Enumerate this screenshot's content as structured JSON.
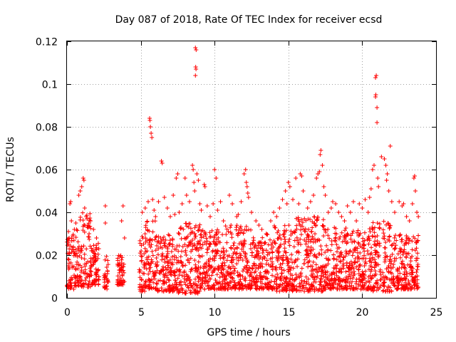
{
  "chart_data": {
    "type": "scatter",
    "title": "Day 087 of 2018, Rate Of TEC Index for receiver ecsd",
    "xlabel": "GPS time / hours",
    "ylabel": "ROTI / TECUs",
    "xlim": [
      0,
      25
    ],
    "ylim": [
      0,
      0.12
    ],
    "xticks": [
      0,
      5,
      10,
      15,
      20,
      25
    ],
    "yticks": [
      0,
      0.02,
      0.04,
      0.06,
      0.08,
      0.1,
      0.12
    ],
    "xtick_labels": [
      "0",
      "5",
      "10",
      "15",
      "20",
      "25"
    ],
    "ytick_labels": [
      "0",
      "0.02",
      "0.04",
      "0.06",
      "0.08",
      "0.1",
      "0.12"
    ],
    "grid": true,
    "marker": "+",
    "color": "#ff0000",
    "series": [
      {
        "name": "ROTI",
        "points": [
          [
            0.1,
            0.031
          ],
          [
            0.15,
            0.028
          ],
          [
            0.2,
            0.044
          ],
          [
            0.25,
            0.045
          ],
          [
            0.3,
            0.036
          ],
          [
            0.4,
            0.029
          ],
          [
            0.5,
            0.032
          ],
          [
            0.6,
            0.035
          ],
          [
            0.8,
            0.048
          ],
          [
            0.9,
            0.05
          ],
          [
            1.0,
            0.052
          ],
          [
            1.1,
            0.056
          ],
          [
            1.15,
            0.055
          ],
          [
            1.2,
            0.042
          ],
          [
            1.3,
            0.038
          ],
          [
            1.4,
            0.034
          ],
          [
            1.5,
            0.03
          ],
          [
            1.6,
            0.036
          ],
          [
            1.8,
            0.032
          ],
          [
            2.0,
            0.028
          ],
          [
            2.6,
            0.043
          ],
          [
            2.6,
            0.035
          ],
          [
            3.7,
            0.036
          ],
          [
            3.8,
            0.043
          ],
          [
            3.9,
            0.028
          ],
          [
            5.1,
            0.04
          ],
          [
            5.3,
            0.042
          ],
          [
            5.5,
            0.045
          ],
          [
            5.6,
            0.084
          ],
          [
            5.62,
            0.083
          ],
          [
            5.65,
            0.08
          ],
          [
            5.7,
            0.077
          ],
          [
            5.75,
            0.075
          ],
          [
            5.8,
            0.046
          ],
          [
            5.9,
            0.041
          ],
          [
            6.0,
            0.038
          ],
          [
            6.2,
            0.045
          ],
          [
            6.4,
            0.064
          ],
          [
            6.45,
            0.063
          ],
          [
            6.6,
            0.047
          ],
          [
            6.8,
            0.042
          ],
          [
            7.0,
            0.038
          ],
          [
            7.2,
            0.048
          ],
          [
            7.3,
            0.039
          ],
          [
            7.4,
            0.056
          ],
          [
            7.5,
            0.058
          ],
          [
            7.6,
            0.04
          ],
          [
            7.8,
            0.044
          ],
          [
            8.0,
            0.056
          ],
          [
            8.1,
            0.048
          ],
          [
            8.3,
            0.045
          ],
          [
            8.5,
            0.062
          ],
          [
            8.55,
            0.06
          ],
          [
            8.6,
            0.054
          ],
          [
            8.65,
            0.05
          ],
          [
            8.7,
            0.117
          ],
          [
            8.75,
            0.116
          ],
          [
            8.72,
            0.108
          ],
          [
            8.74,
            0.107
          ],
          [
            8.7,
            0.104
          ],
          [
            8.8,
            0.058
          ],
          [
            8.9,
            0.055
          ],
          [
            9.0,
            0.044
          ],
          [
            9.1,
            0.041
          ],
          [
            9.3,
            0.053
          ],
          [
            9.35,
            0.052
          ],
          [
            9.5,
            0.043
          ],
          [
            9.7,
            0.038
          ],
          [
            9.9,
            0.044
          ],
          [
            10.0,
            0.06
          ],
          [
            10.1,
            0.056
          ],
          [
            10.2,
            0.041
          ],
          [
            10.4,
            0.045
          ],
          [
            10.6,
            0.036
          ],
          [
            11.0,
            0.048
          ],
          [
            11.2,
            0.044
          ],
          [
            11.5,
            0.038
          ],
          [
            11.6,
            0.039
          ],
          [
            11.8,
            0.045
          ],
          [
            12.0,
            0.058
          ],
          [
            12.1,
            0.06
          ],
          [
            12.15,
            0.054
          ],
          [
            12.2,
            0.052
          ],
          [
            12.25,
            0.049
          ],
          [
            12.3,
            0.047
          ],
          [
            12.5,
            0.04
          ],
          [
            12.8,
            0.036
          ],
          [
            13.0,
            0.034
          ],
          [
            13.2,
            0.032
          ],
          [
            13.5,
            0.03
          ],
          [
            13.8,
            0.036
          ],
          [
            14.0,
            0.04
          ],
          [
            14.2,
            0.038
          ],
          [
            14.4,
            0.042
          ],
          [
            14.6,
            0.046
          ],
          [
            14.8,
            0.05
          ],
          [
            14.9,
            0.044
          ],
          [
            15.0,
            0.054
          ],
          [
            15.1,
            0.052
          ],
          [
            15.3,
            0.046
          ],
          [
            15.5,
            0.056
          ],
          [
            15.7,
            0.044
          ],
          [
            15.8,
            0.058
          ],
          [
            15.9,
            0.057
          ],
          [
            16.0,
            0.05
          ],
          [
            16.3,
            0.042
          ],
          [
            16.5,
            0.045
          ],
          [
            16.7,
            0.048
          ],
          [
            16.9,
            0.056
          ],
          [
            17.0,
            0.058
          ],
          [
            17.1,
            0.059
          ],
          [
            17.15,
            0.067
          ],
          [
            17.2,
            0.069
          ],
          [
            17.3,
            0.062
          ],
          [
            17.4,
            0.052
          ],
          [
            17.5,
            0.048
          ],
          [
            17.7,
            0.04
          ],
          [
            17.9,
            0.042
          ],
          [
            18.0,
            0.045
          ],
          [
            18.2,
            0.044
          ],
          [
            18.4,
            0.04
          ],
          [
            18.6,
            0.038
          ],
          [
            18.8,
            0.036
          ],
          [
            19.0,
            0.043
          ],
          [
            19.2,
            0.04
          ],
          [
            19.4,
            0.045
          ],
          [
            19.6,
            0.036
          ],
          [
            19.8,
            0.044
          ],
          [
            20.0,
            0.042
          ],
          [
            20.2,
            0.046
          ],
          [
            20.4,
            0.04
          ],
          [
            20.5,
            0.047
          ],
          [
            20.6,
            0.051
          ],
          [
            20.7,
            0.06
          ],
          [
            20.8,
            0.062
          ],
          [
            20.9,
            0.103
          ],
          [
            20.95,
            0.104
          ],
          [
            20.92,
            0.095
          ],
          [
            20.9,
            0.094
          ],
          [
            21.0,
            0.089
          ],
          [
            21.0,
            0.082
          ],
          [
            21.05,
            0.056
          ],
          [
            21.1,
            0.052
          ],
          [
            21.3,
            0.066
          ],
          [
            21.5,
            0.065
          ],
          [
            21.6,
            0.062
          ],
          [
            21.65,
            0.055
          ],
          [
            21.7,
            0.058
          ],
          [
            21.8,
            0.05
          ],
          [
            21.9,
            0.071
          ],
          [
            22.0,
            0.045
          ],
          [
            22.2,
            0.04
          ],
          [
            22.5,
            0.045
          ],
          [
            22.7,
            0.043
          ],
          [
            22.8,
            0.044
          ],
          [
            23.0,
            0.038
          ],
          [
            23.2,
            0.036
          ],
          [
            23.4,
            0.044
          ],
          [
            23.5,
            0.056
          ],
          [
            23.55,
            0.057
          ],
          [
            23.6,
            0.05
          ],
          [
            23.7,
            0.04
          ],
          [
            23.8,
            0.038
          ]
        ],
        "bands": [
          {
            "x": [
              0.0,
              0.6
            ],
            "y": [
              0.004,
              0.032
            ]
          },
          {
            "x": [
              0.6,
              1.6
            ],
            "y": [
              0.005,
              0.04
            ]
          },
          {
            "x": [
              1.6,
              2.2
            ],
            "y": [
              0.006,
              0.026
            ]
          },
          {
            "x": [
              2.5,
              2.8
            ],
            "y": [
              0.004,
              0.02
            ]
          },
          {
            "x": [
              3.4,
              3.9
            ],
            "y": [
              0.006,
              0.02
            ]
          },
          {
            "x": [
              4.9,
              5.3
            ],
            "y": [
              0.003,
              0.03
            ]
          },
          {
            "x": [
              5.3,
              6.0
            ],
            "y": [
              0.004,
              0.036
            ]
          },
          {
            "x": [
              6.0,
              7.5
            ],
            "y": [
              0.003,
              0.03
            ]
          },
          {
            "x": [
              7.5,
              9.0
            ],
            "y": [
              0.002,
              0.035
            ]
          },
          {
            "x": [
              9.0,
              10.5
            ],
            "y": [
              0.004,
              0.032
            ]
          },
          {
            "x": [
              10.5,
              12.5
            ],
            "y": [
              0.004,
              0.034
            ]
          },
          {
            "x": [
              12.5,
              14.0
            ],
            "y": [
              0.004,
              0.03
            ]
          },
          {
            "x": [
              14.0,
              15.5
            ],
            "y": [
              0.003,
              0.034
            ]
          },
          {
            "x": [
              15.5,
              17.5
            ],
            "y": [
              0.003,
              0.038
            ]
          },
          {
            "x": [
              17.5,
              19.0
            ],
            "y": [
              0.004,
              0.033
            ]
          },
          {
            "x": [
              19.0,
              20.5
            ],
            "y": [
              0.004,
              0.032
            ]
          },
          {
            "x": [
              20.5,
              22.0
            ],
            "y": [
              0.003,
              0.036
            ]
          },
          {
            "x": [
              22.0,
              23.8
            ],
            "y": [
              0.004,
              0.03
            ]
          }
        ]
      }
    ]
  }
}
